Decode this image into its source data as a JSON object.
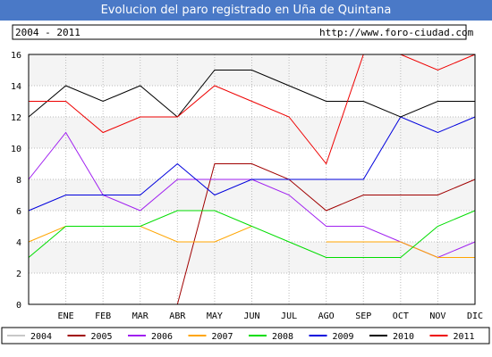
{
  "title": "Evolucion del paro registrado en Uña de Quintana",
  "info": {
    "period": "2004 - 2011",
    "url": "http://www.foro-ciudad.com"
  },
  "colors": {
    "title_bg": "#4a79c7",
    "plot_bg": "#ffffff",
    "band": "#f4f4f4",
    "grid": "#bbbbbb"
  },
  "chart_data": {
    "type": "line",
    "title": "Evolucion del paro registrado en Uña de Quintana",
    "xlabel": "",
    "ylabel": "",
    "categories": [
      "",
      "ENE",
      "FEB",
      "MAR",
      "ABR",
      "MAY",
      "JUN",
      "JUL",
      "AGO",
      "SEP",
      "OCT",
      "NOV",
      "DIC"
    ],
    "ylim": [
      0,
      16
    ],
    "yticks": [
      0,
      2,
      4,
      6,
      8,
      10,
      12,
      14,
      16
    ],
    "grid": true,
    "legend_position": "bottom",
    "series": [
      {
        "name": "2004",
        "color": "#c8c8c8",
        "values": [
          null,
          null,
          null,
          null,
          null,
          null,
          null,
          null,
          null,
          null,
          null,
          null,
          null
        ]
      },
      {
        "name": "2005",
        "color": "#a00000",
        "values": [
          null,
          null,
          null,
          null,
          0,
          9,
          9,
          8,
          6,
          7,
          7,
          7,
          8
        ]
      },
      {
        "name": "2006",
        "color": "#a020f0",
        "values": [
          8,
          11,
          7,
          6,
          8,
          8,
          8,
          7,
          5,
          5,
          4,
          3,
          4
        ]
      },
      {
        "name": "2007",
        "color": "#ffa500",
        "values": [
          4,
          5,
          5,
          5,
          4,
          4,
          5,
          null,
          4,
          4,
          4,
          3,
          3
        ]
      },
      {
        "name": "2008",
        "color": "#00dd00",
        "values": [
          3,
          5,
          5,
          5,
          6,
          6,
          5,
          4,
          3,
          3,
          3,
          5,
          6
        ]
      },
      {
        "name": "2009",
        "color": "#0000dd",
        "values": [
          6,
          7,
          7,
          7,
          9,
          7,
          8,
          8,
          8,
          8,
          12,
          11,
          12
        ]
      },
      {
        "name": "2010",
        "color": "#000000",
        "values": [
          12,
          14,
          13,
          14,
          12,
          15,
          15,
          14,
          13,
          13,
          12,
          13,
          13
        ]
      },
      {
        "name": "2011",
        "color": "#ee0000",
        "values": [
          13,
          13,
          11,
          12,
          12,
          14,
          13,
          12,
          9,
          16,
          16,
          15,
          16
        ]
      }
    ]
  }
}
